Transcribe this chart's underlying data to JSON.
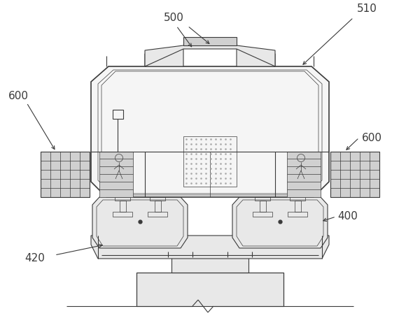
{
  "bg_color": "#ffffff",
  "line_color": "#3a3a3a",
  "lw": 0.8,
  "lw_thin": 0.5,
  "lw_thick": 1.2,
  "fs": 11,
  "gray_light": "#e8e8e8",
  "gray_med": "#d0d0d0",
  "gray_dark": "#b0b0b0",
  "dot_color": "#aaaaaa"
}
